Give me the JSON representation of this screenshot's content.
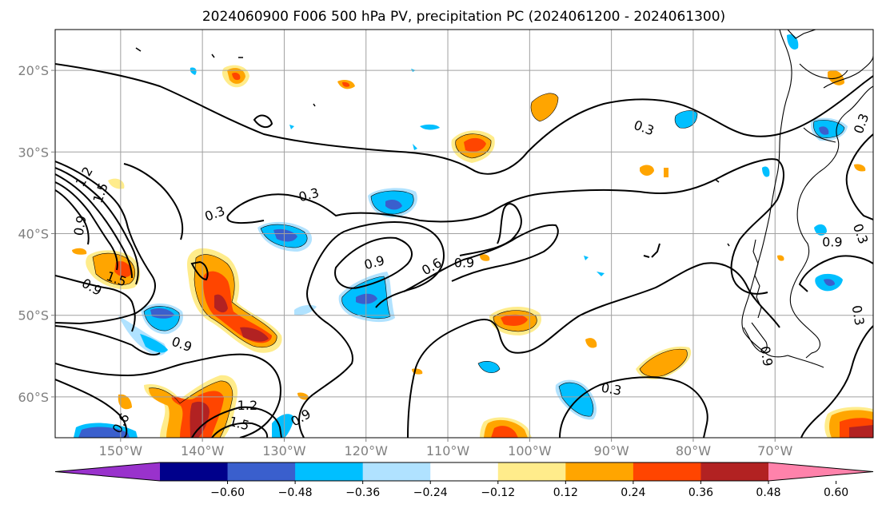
{
  "title": "2024060900 F006 500 hPa PV, precipitation PC (2024061200 - 2024061300)",
  "map": {
    "lon_range": [
      -158,
      -58
    ],
    "lat_range": [
      -65,
      -15
    ],
    "lat_ticks": [
      {
        "value": -20,
        "label": "20°S"
      },
      {
        "value": -30,
        "label": "30°S"
      },
      {
        "value": -40,
        "label": "40°S"
      },
      {
        "value": -50,
        "label": "50°S"
      },
      {
        "value": -60,
        "label": "60°S"
      }
    ],
    "lon_ticks": [
      {
        "value": -150,
        "label": "150°W"
      },
      {
        "value": -140,
        "label": "140°W"
      },
      {
        "value": -130,
        "label": "130°W"
      },
      {
        "value": -120,
        "label": "120°W"
      },
      {
        "value": -110,
        "label": "110°W"
      },
      {
        "value": -100,
        "label": "100°W"
      },
      {
        "value": -90,
        "label": "90°W"
      },
      {
        "value": -80,
        "label": "80°W"
      },
      {
        "value": -70,
        "label": "70°W"
      }
    ],
    "grid": true
  },
  "colorbar": {
    "colors": [
      "#9932cc",
      "#00008b",
      "#3a5fcd",
      "#00bfff",
      "#b0e2ff",
      "#ffffff",
      "#ffec8b",
      "#ffa500",
      "#ff4500",
      "#b22222",
      "#ff82ab"
    ],
    "ticks": [
      "−0.60",
      "−0.48",
      "−0.36",
      "−0.24",
      "−0.12",
      "0.12",
      "0.24",
      "0.36",
      "0.48",
      "0.60"
    ]
  },
  "contour_labels": [
    {
      "text": "0.3",
      "lon": -138.5,
      "lat": -37.5,
      "rot": -20
    },
    {
      "text": "0.3",
      "lon": -127,
      "lat": -35.2,
      "rot": -15
    },
    {
      "text": "0.3",
      "lon": -86,
      "lat": -27,
      "rot": 20
    },
    {
      "text": "0.3",
      "lon": -59.5,
      "lat": -26.5,
      "rot": -70
    },
    {
      "text": "0.3",
      "lon": -59.5,
      "lat": -40,
      "rot": 70
    },
    {
      "text": "0.3",
      "lon": -90,
      "lat": -59,
      "rot": 10
    },
    {
      "text": "0.9",
      "lon": -119,
      "lat": -43.5,
      "rot": -15
    },
    {
      "text": "0.6",
      "lon": -112,
      "lat": -44,
      "rot": -30
    },
    {
      "text": "0.9",
      "lon": -108,
      "lat": -43.5,
      "rot": 0
    },
    {
      "text": "0.9",
      "lon": -63,
      "lat": -41,
      "rot": 0
    },
    {
      "text": "0.9",
      "lon": -153.5,
      "lat": -46.5,
      "rot": 30
    },
    {
      "text": "1.5",
      "lon": -152.5,
      "lat": -35,
      "rot": -70
    },
    {
      "text": "1.2",
      "lon": -154.5,
      "lat": -33,
      "rot": -60
    },
    {
      "text": "0.9",
      "lon": -155,
      "lat": -39,
      "rot": -80
    },
    {
      "text": "1.5",
      "lon": -150.5,
      "lat": -45.5,
      "rot": 20
    },
    {
      "text": "0.9",
      "lon": -142.5,
      "lat": -53.5,
      "rot": 20
    },
    {
      "text": "1.2",
      "lon": -134.5,
      "lat": -61,
      "rot": 0
    },
    {
      "text": "1.5",
      "lon": -135.5,
      "lat": -63.2,
      "rot": 15
    },
    {
      "text": "0.9",
      "lon": -128,
      "lat": -62.5,
      "rot": -30
    },
    {
      "text": "0.6",
      "lon": -150,
      "lat": -63.2,
      "rot": -60
    },
    {
      "text": "0.9",
      "lon": -71,
      "lat": -55,
      "rot": 80
    },
    {
      "text": "0.3",
      "lon": -59.8,
      "lat": -50,
      "rot": 80
    }
  ]
}
